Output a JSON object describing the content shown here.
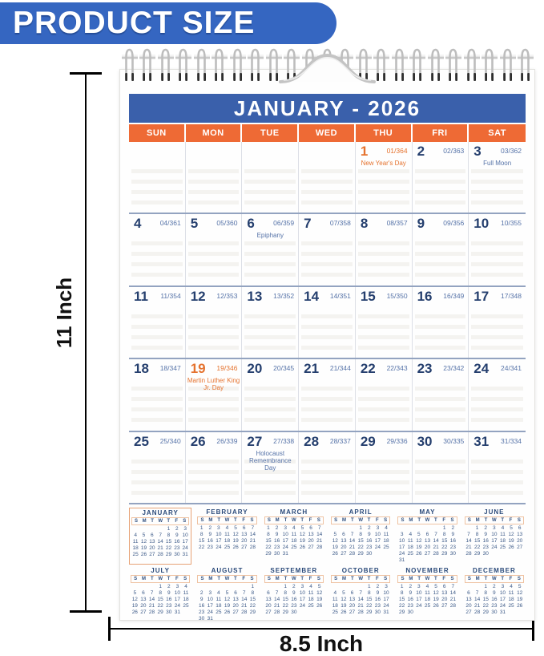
{
  "banner": {
    "label": "PRODUCT SIZE"
  },
  "dimensions": {
    "height_label": "11 Inch",
    "width_label": "8.5 Inch"
  },
  "colors": {
    "banner_blue": "#3566c1",
    "header_blue": "#3a60ab",
    "orange": "#ee6a35",
    "orange_text": "#e5732f",
    "navy": "#253f6e",
    "soft_blue": "#5673a8"
  },
  "calendar": {
    "title": "JANUARY - 2026",
    "weekdays": [
      "SUN",
      "MON",
      "TUE",
      "WED",
      "THU",
      "FRI",
      "SAT"
    ],
    "weeks": [
      [
        null,
        null,
        null,
        null,
        {
          "day": "1",
          "note": "01/364",
          "holiday": "New Year's Day",
          "accent": "orange"
        },
        {
          "day": "2",
          "note": "02/363"
        },
        {
          "day": "3",
          "note": "03/362",
          "holiday": "Full Moon"
        }
      ],
      [
        {
          "day": "4",
          "note": "04/361"
        },
        {
          "day": "5",
          "note": "05/360"
        },
        {
          "day": "6",
          "note": "06/359",
          "holiday": "Epiphany"
        },
        {
          "day": "7",
          "note": "07/358"
        },
        {
          "day": "8",
          "note": "08/357"
        },
        {
          "day": "9",
          "note": "09/356"
        },
        {
          "day": "10",
          "note": "10/355"
        }
      ],
      [
        {
          "day": "11",
          "note": "11/354"
        },
        {
          "day": "12",
          "note": "12/353"
        },
        {
          "day": "13",
          "note": "13/352"
        },
        {
          "day": "14",
          "note": "14/351"
        },
        {
          "day": "15",
          "note": "15/350"
        },
        {
          "day": "16",
          "note": "16/349"
        },
        {
          "day": "17",
          "note": "17/348"
        }
      ],
      [
        {
          "day": "18",
          "note": "18/347"
        },
        {
          "day": "19",
          "note": "19/346",
          "holiday": "Martin Luther King Jr. Day",
          "accent": "orange"
        },
        {
          "day": "20",
          "note": "20/345"
        },
        {
          "day": "21",
          "note": "21/344"
        },
        {
          "day": "22",
          "note": "22/343"
        },
        {
          "day": "23",
          "note": "23/342"
        },
        {
          "day": "24",
          "note": "24/341"
        }
      ],
      [
        {
          "day": "25",
          "note": "25/340"
        },
        {
          "day": "26",
          "note": "26/339"
        },
        {
          "day": "27",
          "note": "27/338",
          "holiday": "Holocaust Remembrance Day"
        },
        {
          "day": "28",
          "note": "28/337"
        },
        {
          "day": "29",
          "note": "29/336"
        },
        {
          "day": "30",
          "note": "30/335"
        },
        {
          "day": "31",
          "note": "31/334"
        }
      ]
    ]
  },
  "year_overview": {
    "weekday_letters": [
      "S",
      "M",
      "T",
      "W",
      "T",
      "F",
      "S"
    ],
    "months": [
      {
        "name": "JANUARY",
        "first_day": 4,
        "days": 31,
        "highlight": true
      },
      {
        "name": "FEBRUARY",
        "first_day": 0,
        "days": 28
      },
      {
        "name": "MARCH",
        "first_day": 0,
        "days": 31
      },
      {
        "name": "APRIL",
        "first_day": 3,
        "days": 30
      },
      {
        "name": "MAY",
        "first_day": 5,
        "days": 31
      },
      {
        "name": "JUNE",
        "first_day": 1,
        "days": 30
      },
      {
        "name": "JULY",
        "first_day": 3,
        "days": 31
      },
      {
        "name": "AUGUST",
        "first_day": 6,
        "days": 31
      },
      {
        "name": "SEPTEMBER",
        "first_day": 2,
        "days": 30
      },
      {
        "name": "OCTOBER",
        "first_day": 4,
        "days": 31
      },
      {
        "name": "NOVEMBER",
        "first_day": 0,
        "days": 30
      },
      {
        "name": "DECEMBER",
        "first_day": 2,
        "days": 31
      }
    ]
  }
}
